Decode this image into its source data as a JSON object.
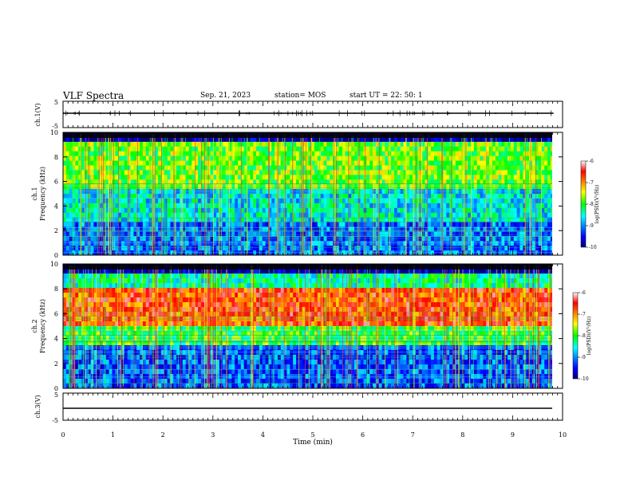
{
  "header": {
    "title": "VLF Spectra",
    "date": "Sep. 21, 2023",
    "station": "station= MOS",
    "start": "start  UT =   22: 50: 1"
  },
  "chart_data": [
    {
      "type": "line",
      "panel": "ch1-waveform",
      "ylabel": "ch.1(V)",
      "ylim": [
        -5,
        5
      ],
      "ytick_labels": [
        "5",
        "-5"
      ],
      "xlim": [
        0,
        10
      ],
      "baseline": 0
    },
    {
      "type": "heatmap",
      "panel": "ch1-spectrogram",
      "ylabel_line1": "ch.1",
      "ylabel_line2": "Frequency (kHz)",
      "ylim": [
        0,
        10
      ],
      "ytick_labels": [
        "0",
        "2",
        "4",
        "6",
        "8",
        "10"
      ],
      "xlim": [
        0,
        9.82
      ],
      "colorbar": {
        "label": "log(PSD)(V²/Hz)",
        "min": -10,
        "max": -6,
        "tick_labels": [
          "-6",
          "-7",
          "-8",
          "-9",
          "-10"
        ]
      }
    },
    {
      "type": "heatmap",
      "panel": "ch2-spectrogram",
      "ylabel_line1": "ch.2",
      "ylabel_line2": "Frequency (kHz)",
      "ylim": [
        0,
        10
      ],
      "ytick_labels": [
        "0",
        "2",
        "4",
        "6",
        "8",
        "10"
      ],
      "xlim": [
        0,
        9.82
      ],
      "colorbar": {
        "label": "log(PSD)(V²/Hz)",
        "min": -10,
        "max": -6,
        "tick_labels": [
          "-6",
          "-7",
          "-8",
          "-9",
          "-10"
        ]
      }
    },
    {
      "type": "line",
      "panel": "ch3-waveform",
      "ylabel": "ch.3(V)",
      "ylim": [
        -5,
        5
      ],
      "ytick_labels": [
        "5",
        "-5"
      ],
      "xlim": [
        0,
        10
      ],
      "baseline": 0
    }
  ],
  "xaxis": {
    "label": "Time (min)",
    "tick_labels": [
      "0",
      "1",
      "2",
      "3",
      "4",
      "5",
      "6",
      "7",
      "8",
      "9",
      "10"
    ]
  }
}
